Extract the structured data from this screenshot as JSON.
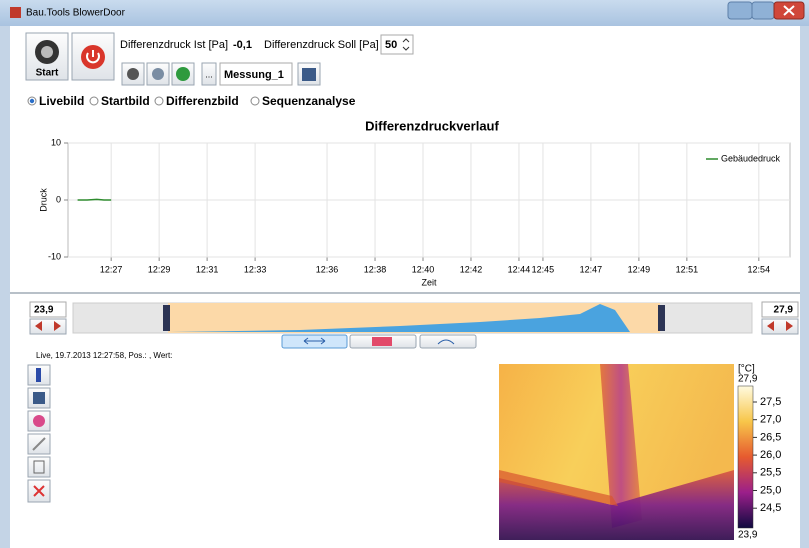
{
  "window": {
    "title": "Bau.Tools BlowerDoor"
  },
  "toolbar": {
    "start": "Start",
    "ist_label": "Differenzdruck Ist [Pa]",
    "ist_value": "-0,1",
    "soll_label": "Differenzdruck Soll [Pa]",
    "soll_value": "50",
    "browse": "...",
    "measurement": "Messung_1"
  },
  "view_modes": {
    "options": [
      "Livebild",
      "Startbild",
      "Differenzbild",
      "Sequenzanalyse"
    ],
    "selected": 0
  },
  "chart_data": {
    "type": "line",
    "title": "Differenzdruckverlauf",
    "x_label": "Zeit",
    "y_label": "Druck",
    "xlim": [
      745.2,
      775.3
    ],
    "xticks": [
      {
        "value": 747,
        "label": "12:27"
      },
      {
        "value": 749,
        "label": "12:29"
      },
      {
        "value": 751,
        "label": "12:31"
      },
      {
        "value": 753,
        "label": "12:33"
      },
      {
        "value": 756,
        "label": "12:36"
      },
      {
        "value": 758,
        "label": "12:38"
      },
      {
        "value": 760,
        "label": "12:40"
      },
      {
        "value": 762,
        "label": "12:42"
      },
      {
        "value": 764,
        "label": "12:44"
      },
      {
        "value": 765,
        "label": "12:45"
      },
      {
        "value": 767,
        "label": "12:47"
      },
      {
        "value": 769,
        "label": "12:49"
      },
      {
        "value": 771,
        "label": "12:51"
      },
      {
        "value": 774,
        "label": "12:54"
      }
    ],
    "ylim": [
      -10,
      10
    ],
    "yticks": [
      -10,
      0,
      10
    ],
    "grid": true,
    "legend": "upper right",
    "series": [
      {
        "name": "Gebäudedruck",
        "color": "#2e8b2e",
        "x": [
          745.6,
          746,
          746.4,
          746.7,
          747
        ],
        "values": [
          0,
          0,
          0.1,
          0,
          0
        ]
      }
    ]
  },
  "range": {
    "min": "23,9",
    "max": "27,9"
  },
  "status": "Live, 19.7.2013 12:27:58, Pos.: , Wert:",
  "colorbar": {
    "unit": "[°C]",
    "max": "27,9",
    "ticks": [
      "27,5",
      "27,0",
      "26,5",
      "26,0",
      "25,5",
      "25,0",
      "24,5"
    ],
    "min": "23,9"
  }
}
